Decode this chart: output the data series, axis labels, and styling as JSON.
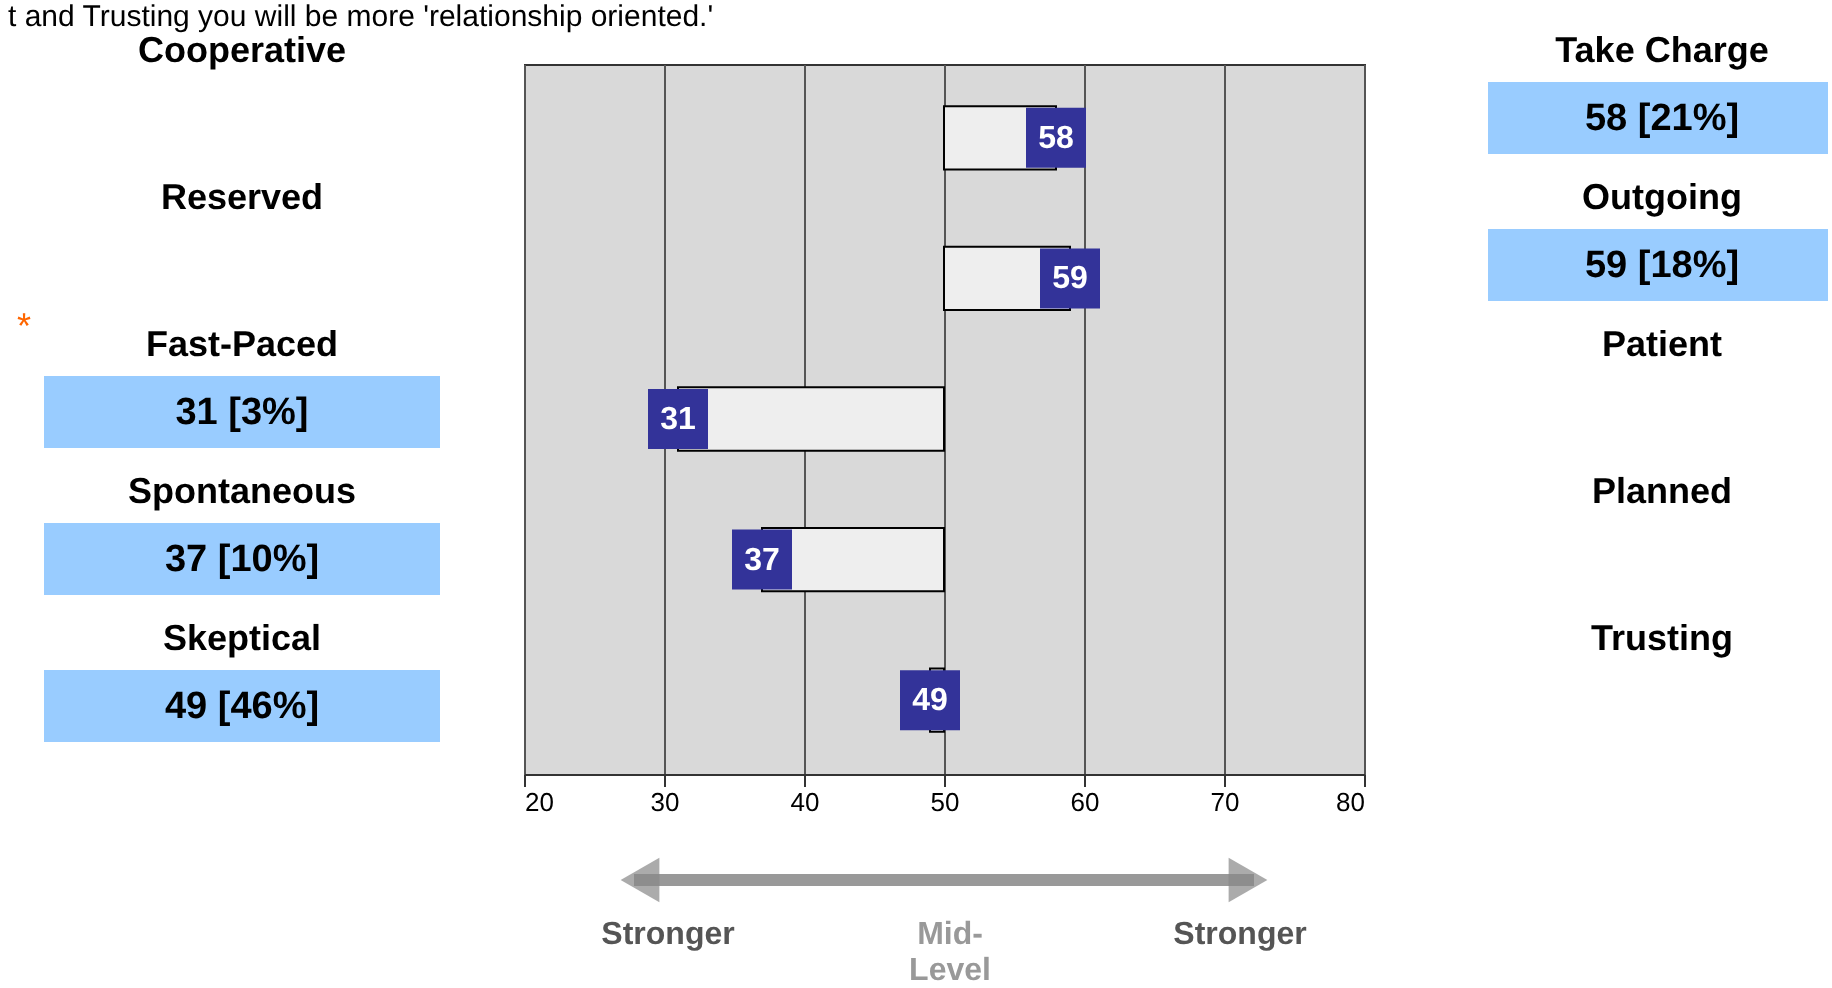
{
  "chart_data": {
    "type": "bar",
    "orientation": "horizontal",
    "categories": [
      "Cooperative",
      "Reserved",
      "Fast-Paced",
      "Spontaneous",
      "Skeptical"
    ],
    "base": [
      50,
      50,
      50,
      50,
      50
    ],
    "values": [
      8,
      9,
      -19,
      -13,
      -1
    ],
    "value_labels": [
      "58",
      "59",
      "31",
      "37",
      "49"
    ],
    "color": "#eeeeee",
    "xlim": [
      20,
      80
    ],
    "xticks": [
      20,
      30,
      40,
      50,
      60,
      70,
      80
    ],
    "grid": "x",
    "tick_labels": "x",
    "legend": false,
    "annotations": [
      "Take Charge",
      "Outgoing",
      "Patient",
      "Planned",
      "Trusting",
      "58 [21%]",
      "59 [18%]",
      "31 [3%]",
      "37 [10%]",
      "49 [46%]",
      "*",
      "Stronger",
      "Mid-\nLevel",
      "Stronger",
      "t and Trusting you will be more 'relationship oriented.'"
    ]
  }
}
